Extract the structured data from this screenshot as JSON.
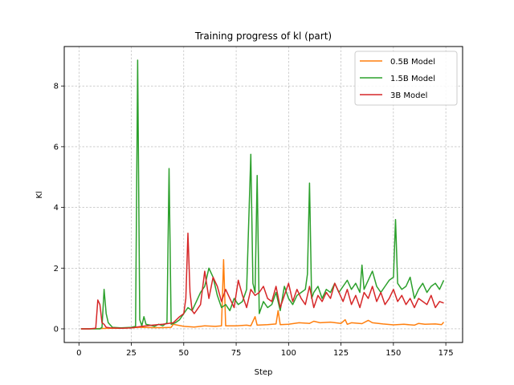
{
  "chart_data": {
    "type": "line",
    "title": "Training progress of kl (part)",
    "xlabel": "Step",
    "ylabel": "Kl",
    "xlim": [
      -7,
      183
    ],
    "ylim": [
      -0.45,
      9.3
    ],
    "xticks": [
      0,
      25,
      50,
      75,
      100,
      125,
      150,
      175
    ],
    "yticks": [
      0,
      2,
      4,
      6,
      8
    ],
    "grid": true,
    "legend_position": "top-right",
    "series": [
      {
        "name": "0.5B Model",
        "color": "#ff7f0e",
        "x": [
          1,
          5,
          10,
          15,
          20,
          25,
          28,
          30,
          35,
          40,
          44,
          45,
          50,
          55,
          60,
          65,
          68,
          69,
          70,
          75,
          80,
          82,
          84,
          85,
          90,
          94,
          95,
          96,
          100,
          105,
          110,
          112,
          115,
          120,
          125,
          127,
          128,
          130,
          135,
          138,
          140,
          145,
          150,
          155,
          160,
          162,
          165,
          170,
          173,
          174
        ],
        "y": [
          0,
          0,
          0.01,
          0.02,
          0.02,
          0.03,
          0.05,
          0.05,
          0.04,
          0.04,
          0.05,
          0.15,
          0.08,
          0.06,
          0.1,
          0.08,
          0.1,
          2.28,
          0.1,
          0.1,
          0.12,
          0.1,
          0.4,
          0.12,
          0.14,
          0.16,
          0.6,
          0.14,
          0.15,
          0.2,
          0.18,
          0.25,
          0.2,
          0.22,
          0.18,
          0.3,
          0.15,
          0.2,
          0.17,
          0.28,
          0.2,
          0.16,
          0.13,
          0.15,
          0.12,
          0.18,
          0.15,
          0.16,
          0.14,
          0.22
        ]
      },
      {
        "name": "1.5B Model",
        "color": "#2ca02c",
        "x": [
          1,
          5,
          10,
          11,
          12,
          13,
          14,
          16,
          20,
          25,
          27,
          28,
          29,
          30,
          31,
          32,
          34,
          36,
          38,
          40,
          42,
          43,
          44,
          46,
          48,
          50,
          52,
          54,
          56,
          58,
          60,
          62,
          64,
          66,
          68,
          70,
          72,
          74,
          76,
          78,
          80,
          82,
          83,
          84,
          85,
          86,
          88,
          90,
          92,
          94,
          96,
          98,
          100,
          102,
          104,
          106,
          108,
          109,
          110,
          111,
          112,
          114,
          116,
          118,
          120,
          122,
          124,
          126,
          128,
          130,
          132,
          134,
          135,
          136,
          138,
          140,
          142,
          144,
          146,
          148,
          150,
          151,
          152,
          154,
          156,
          158,
          160,
          162,
          164,
          166,
          168,
          170,
          172,
          174
        ],
        "y": [
          0,
          0,
          0,
          0.05,
          1.3,
          0.5,
          0.2,
          0.05,
          0.03,
          0.05,
          0.08,
          8.85,
          0.3,
          0.1,
          0.4,
          0.15,
          0.12,
          0.08,
          0.15,
          0.1,
          0.2,
          5.28,
          0.15,
          0.2,
          0.3,
          0.5,
          0.7,
          0.6,
          0.9,
          1.2,
          1.4,
          2.0,
          1.7,
          1.1,
          0.7,
          0.8,
          0.6,
          1.0,
          0.8,
          0.9,
          1.3,
          5.75,
          1.5,
          1.2,
          5.05,
          0.5,
          0.9,
          0.7,
          0.8,
          1.2,
          0.6,
          1.4,
          1.0,
          0.8,
          1.1,
          1.2,
          1.3,
          1.8,
          4.8,
          1.0,
          1.2,
          1.4,
          1.0,
          1.3,
          1.2,
          1.5,
          1.2,
          1.4,
          1.6,
          1.3,
          1.5,
          1.2,
          2.1,
          1.3,
          1.6,
          1.9,
          1.4,
          1.2,
          1.4,
          1.6,
          1.7,
          3.6,
          1.5,
          1.3,
          1.4,
          1.7,
          1.0,
          1.3,
          1.5,
          1.2,
          1.4,
          1.5,
          1.3,
          1.6
        ]
      },
      {
        "name": "3B Model",
        "color": "#d62728",
        "x": [
          1,
          5,
          8,
          9,
          10,
          11,
          12,
          13,
          15,
          20,
          25,
          30,
          35,
          40,
          45,
          48,
          50,
          51,
          52,
          53,
          54,
          55,
          56,
          58,
          60,
          62,
          64,
          66,
          68,
          70,
          72,
          74,
          76,
          78,
          80,
          82,
          84,
          86,
          88,
          90,
          92,
          94,
          96,
          98,
          100,
          102,
          104,
          106,
          108,
          110,
          112,
          114,
          116,
          118,
          120,
          122,
          124,
          126,
          128,
          130,
          132,
          134,
          136,
          138,
          140,
          142,
          144,
          146,
          148,
          150,
          152,
          154,
          156,
          158,
          160,
          162,
          164,
          166,
          168,
          170,
          172,
          174
        ],
        "y": [
          0,
          0,
          0.02,
          0.95,
          0.8,
          0.2,
          0.15,
          0.05,
          0.03,
          0.02,
          0.03,
          0.08,
          0.12,
          0.15,
          0.2,
          0.4,
          0.5,
          1.0,
          3.15,
          1.2,
          0.6,
          0.5,
          0.6,
          0.8,
          1.9,
          1.0,
          1.7,
          1.4,
          0.9,
          1.3,
          1.0,
          0.7,
          1.6,
          1.1,
          0.7,
          1.3,
          1.1,
          1.2,
          1.4,
          1.0,
          0.9,
          1.4,
          0.7,
          1.1,
          1.5,
          0.9,
          1.3,
          1.0,
          0.8,
          1.4,
          0.7,
          1.1,
          0.9,
          1.2,
          1.0,
          1.5,
          1.2,
          0.9,
          1.3,
          0.8,
          1.1,
          0.7,
          1.2,
          1.0,
          1.4,
          0.9,
          1.2,
          0.8,
          1.0,
          1.3,
          0.9,
          1.1,
          0.8,
          1.0,
          0.7,
          1.0,
          0.9,
          0.8,
          1.1,
          0.7,
          0.9,
          0.85
        ]
      }
    ]
  }
}
